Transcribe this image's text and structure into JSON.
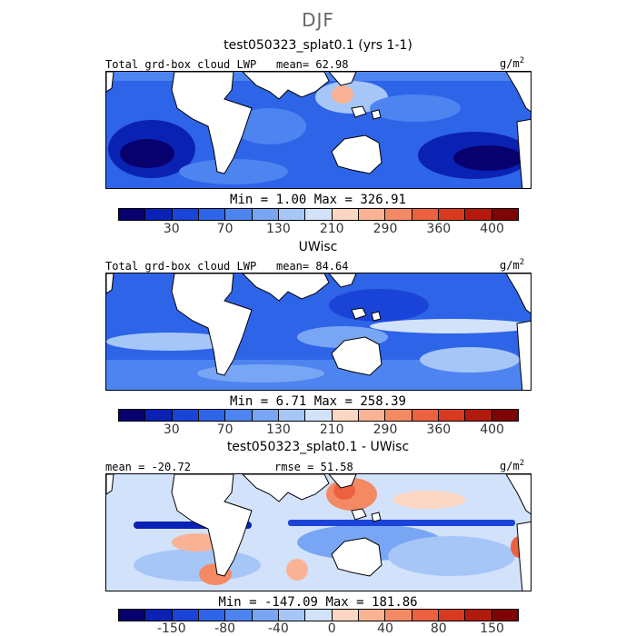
{
  "title": "DJF",
  "colors": {
    "cloud_scale": [
      "#08006e",
      "#0a22b4",
      "#1a44d8",
      "#2e64e8",
      "#4d84f0",
      "#78a6f4",
      "#a6c6f8",
      "#d2e2fa",
      "#fbd6c2",
      "#f9b394",
      "#f48a64",
      "#ec6240",
      "#d83a20",
      "#b21a0e",
      "#7e0404"
    ],
    "land": "#ffffff",
    "coast": "#000000"
  },
  "panels": [
    {
      "title": "test050323_splat0.1 (yrs 1-1)",
      "left_label": "Total grd-box cloud LWP",
      "stat_label": "mean=",
      "stat_value": "62.98",
      "units_base": "g/m",
      "units_exp": "2",
      "min_label": "Min =",
      "min_value": "1.00",
      "max_label": "Max =",
      "max_value": "326.91",
      "colorbar_ticks": [
        "30",
        "70",
        "130",
        "210",
        "290",
        "360",
        "400"
      ]
    },
    {
      "title": "UWisc",
      "left_label": "Total grd-box cloud LWP",
      "stat_label": "mean=",
      "stat_value": "84.64",
      "units_base": "g/m",
      "units_exp": "2",
      "min_label": "Min =",
      "min_value": "6.71",
      "max_label": "Max =",
      "max_value": "258.39",
      "colorbar_ticks": [
        "30",
        "70",
        "130",
        "210",
        "290",
        "360",
        "400"
      ]
    },
    {
      "title": "test050323_splat0.1 - UWisc",
      "left_label": "mean = -20.72",
      "stat_label": "rmse =",
      "stat_value": "51.58",
      "units_base": "g/m",
      "units_exp": "2",
      "min_label": "Min =",
      "min_value": "-147.09",
      "max_label": "Max =",
      "max_value": "181.86",
      "colorbar_ticks": [
        "-150",
        "-80",
        "-40",
        "0",
        "40",
        "80",
        "150"
      ]
    }
  ],
  "chart_data": [
    {
      "type": "heatmap",
      "title": "test050323_splat0.1 (yrs 1-1)",
      "season": "DJF",
      "variable": "Total grd-box cloud LWP",
      "units": "g/m2",
      "mean": 62.98,
      "min": 1.0,
      "max": 326.91,
      "colorbar_levels": [
        30,
        70,
        130,
        210,
        290,
        360,
        400
      ]
    },
    {
      "type": "heatmap",
      "title": "UWisc",
      "season": "DJF",
      "variable": "Total grd-box cloud LWP",
      "units": "g/m2",
      "mean": 84.64,
      "min": 6.71,
      "max": 258.39,
      "colorbar_levels": [
        30,
        70,
        130,
        210,
        290,
        360,
        400
      ]
    },
    {
      "type": "heatmap",
      "title": "test050323_splat0.1 - UWisc",
      "season": "DJF",
      "units": "g/m2",
      "mean": -20.72,
      "rmse": 51.58,
      "min": -147.09,
      "max": 181.86,
      "colorbar_levels": [
        -150,
        -80,
        -40,
        0,
        40,
        80,
        150
      ]
    }
  ]
}
